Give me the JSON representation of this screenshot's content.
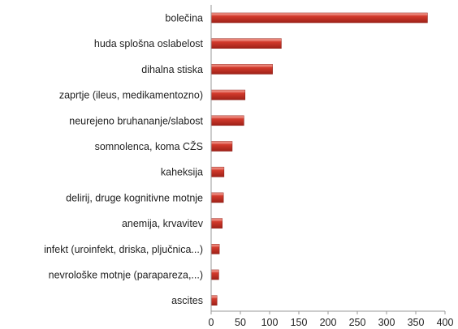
{
  "chart_data": {
    "type": "bar",
    "orientation": "horizontal",
    "categories": [
      "bolečina",
      "huda splošna oslabelost",
      "dihalna stiska",
      "zaprtje (ileus, medikamentozno)",
      "neurejeno bruhananje/slabost",
      "somnolenca, koma CŽS",
      "kaheksija",
      "delirij, druge kognitivne motnje",
      "anemija, krvavitev",
      "infekt (uroinfekt, driska, pljučnica...)",
      "nevrološke motnje (parapareza,...)",
      "ascites"
    ],
    "values": [
      370,
      120,
      105,
      58,
      56,
      36,
      22,
      21,
      19,
      14,
      13,
      10
    ],
    "xlim": [
      0,
      400
    ],
    "x_ticks": [
      "0",
      "50",
      "100",
      "150",
      "200",
      "250",
      "300",
      "350",
      "400"
    ],
    "grid": false,
    "legend": "none",
    "title": "",
    "xlabel": "",
    "ylabel": "",
    "bar_color": "#c0392b"
  }
}
